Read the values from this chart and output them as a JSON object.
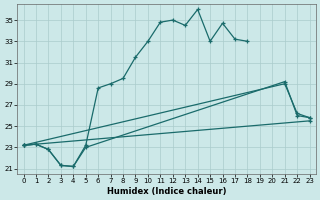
{
  "xlabel": "Humidex (Indice chaleur)",
  "xlim": [
    -0.5,
    23.5
  ],
  "ylim": [
    20.5,
    36.5
  ],
  "yticks": [
    21,
    23,
    25,
    27,
    29,
    31,
    33,
    35
  ],
  "xticks": [
    0,
    1,
    2,
    3,
    4,
    5,
    6,
    7,
    8,
    9,
    10,
    11,
    12,
    13,
    14,
    15,
    16,
    17,
    18,
    19,
    20,
    21,
    22,
    23
  ],
  "bg_color": "#cce8e8",
  "grid_color": "#aacccc",
  "line_color": "#1a6b6b",
  "lines": [
    {
      "x": [
        0,
        1,
        2,
        3,
        4,
        5,
        6,
        7,
        8,
        9,
        10,
        11,
        12,
        13,
        14,
        15,
        16,
        17,
        18
      ],
      "y": [
        23.2,
        23.3,
        22.8,
        21.3,
        21.2,
        23.2,
        28.6,
        29.0,
        29.5,
        31.5,
        33.0,
        34.8,
        35.0,
        34.5,
        36.0,
        33.0,
        34.7,
        33.2,
        33.0
      ]
    },
    {
      "x": [
        0,
        1,
        2,
        3,
        4,
        5,
        21,
        22,
        23
      ],
      "y": [
        23.2,
        23.3,
        22.8,
        21.3,
        21.2,
        23.0,
        29.2,
        26.0,
        25.8
      ]
    },
    {
      "x": [
        0,
        21,
        22,
        23
      ],
      "y": [
        23.2,
        29.0,
        26.2,
        25.8
      ]
    },
    {
      "x": [
        0,
        23
      ],
      "y": [
        23.2,
        25.5
      ]
    }
  ]
}
